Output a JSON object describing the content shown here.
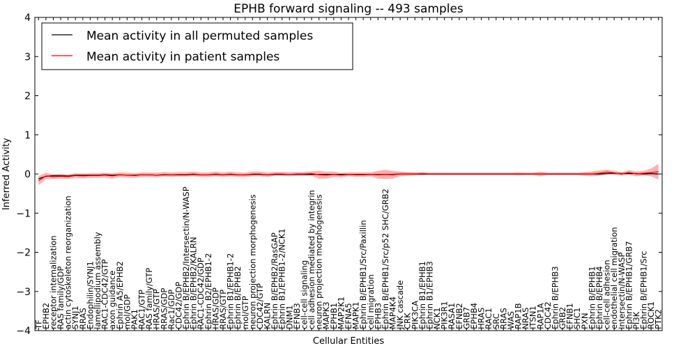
{
  "chart_data": {
    "type": "line",
    "title": "EPHB forward signaling -- 493 samples",
    "xlabel": "Cellular Entities",
    "ylabel": "Inferred Activity",
    "ylim": [
      -4,
      4
    ],
    "yticks": [
      -4,
      -3,
      -2,
      -1,
      0,
      1,
      2,
      3,
      4
    ],
    "grid": false,
    "legend_position": "top-left",
    "categories": [
      "TF",
      "EPHB2",
      "receptor internalization",
      "RAS family/GDP",
      "actin cytoskeleton reorganization",
      "SYNJ1",
      "RRAS",
      "Endophilin/SYNJ1",
      "lamellipodium assembly",
      "RAC1-CDC42/GTP",
      "axon guidance",
      "Ephrin A5/EPHB2",
      "mol/GDP",
      "PAK1",
      "RAC1/GTP",
      "RAS family/GTP",
      "HRAS/GTP",
      "RRAS/GDP",
      "Rac1/GDP",
      "CDC42/GDP",
      "Ephrin B/EPHB2/Intersectin/N-WASP",
      "Ephrin B/EPHB2/KALRN",
      "RAC1-CDC42/GDP",
      "Ephrin B2/EPHB1-2",
      "HRAS/GDP",
      "RRAS/GTP",
      "Ephrin B1/EPHB1-2",
      "Ephrin B/EPHB2",
      "mol/GTP",
      "neuron projection morphogenesis",
      "CDC42/GTP",
      "KALRN",
      "Ephrin B/EPHB2/RasGAP",
      "Ephrin B1/EPHB1-2/NCK1",
      "DNM1",
      "EFNB3",
      "cell-cell signaling",
      "cell adhesion mediated by integrin",
      "neuron projection morphogenesis",
      "MAPK3",
      "EPHB1",
      "MAP2K1",
      "EFNA5",
      "MAPK1",
      "Ephrin B/EPHB1/Src/Paxillin",
      "cell migration",
      "EPHB3",
      "Ephrin B/EPHB1/Src/p52 SHC/GRB2",
      "MAP4K4",
      "JNK cascade",
      "CRK",
      "PIK3CA",
      "Ephrin B1/EPHB1",
      "Ephrin B1/EPHB3",
      "NCK1",
      "PIK3R1",
      "RASA1",
      "EFNB2",
      "GRB7",
      "EPHB4",
      "HRAS",
      "RAC1",
      "SRC",
      "RRAS",
      "WAS",
      "RAP1B",
      "NRAS",
      "ITSN1",
      "RAP1A",
      "CDC42",
      "Ephrin B/EPHB3",
      "GRB2",
      "EFNB1",
      "SHC1",
      "PXN",
      "Ephrin B/EPHB1",
      "Ephrin B/EPHB4",
      "cell-cell adhesion",
      "endothelial cell migration",
      "Intersectin/N-WASP",
      "Ephrin B/EPHB1/GRB7",
      "PI3K",
      "Ephrin B/EPHB1/Src",
      "ROCK1",
      "PTK2"
    ],
    "series": [
      {
        "name": "Mean activity in all permuted samples",
        "color": "#000000",
        "values": [
          -0.12,
          -0.06,
          -0.04,
          -0.04,
          -0.05,
          -0.03,
          -0.03,
          -0.03,
          -0.03,
          -0.02,
          -0.03,
          -0.02,
          -0.03,
          -0.03,
          -0.02,
          -0.02,
          -0.03,
          -0.02,
          -0.02,
          -0.02,
          -0.02,
          -0.01,
          -0.02,
          -0.02,
          -0.01,
          -0.02,
          -0.01,
          -0.02,
          -0.02,
          -0.01,
          -0.01,
          -0.02,
          -0.01,
          -0.01,
          -0.01,
          -0.01,
          -0.01,
          -0.01,
          -0.01,
          -0.01,
          -0.01,
          -0.01,
          -0.01,
          -0.01,
          -0.01,
          -0.01,
          -0.01,
          -0.01,
          -0.01,
          0.0,
          0.0,
          0.0,
          0.0,
          0.0,
          0.0,
          0.0,
          0.0,
          0.0,
          0.0,
          0.0,
          0.0,
          0.0,
          0.0,
          0.0,
          0.0,
          0.0,
          0.0,
          0.0,
          0.0,
          0.0,
          0.0,
          0.0,
          0.0,
          0.0,
          0.0,
          0.0,
          0.0,
          0.01,
          0.02,
          0.01,
          0.01,
          0.01,
          0.0,
          0.01,
          0.0
        ],
        "band": [
          0.02,
          0.02,
          0.02,
          0.02,
          0.02,
          0.02,
          0.02,
          0.02,
          0.02,
          0.02,
          0.02,
          0.02,
          0.02,
          0.02,
          0.02,
          0.02,
          0.02,
          0.02,
          0.02,
          0.02,
          0.02,
          0.02,
          0.02,
          0.02,
          0.02,
          0.02,
          0.02,
          0.02,
          0.02,
          0.02,
          0.02,
          0.02,
          0.02,
          0.02,
          0.02,
          0.02,
          0.02,
          0.02,
          0.03,
          0.03,
          0.03,
          0.03,
          0.03,
          0.03,
          0.03,
          0.03,
          0.04,
          0.05,
          0.05,
          0.05,
          0.04,
          0.03,
          0.03,
          0.03,
          0.03,
          0.03,
          0.03,
          0.03,
          0.03,
          0.03,
          0.03,
          0.03,
          0.03,
          0.03,
          0.03,
          0.03,
          0.03,
          0.03,
          0.03,
          0.03,
          0.03,
          0.03,
          0.03,
          0.03,
          0.03,
          0.03,
          0.03,
          0.03,
          0.03,
          0.03,
          0.03,
          0.03,
          0.03,
          0.04,
          0.04
        ]
      },
      {
        "name": "Mean activity in patient samples",
        "color": "#ff0000",
        "values": [
          -0.17,
          -0.05,
          -0.07,
          -0.06,
          -0.07,
          -0.04,
          -0.05,
          -0.04,
          -0.04,
          -0.03,
          -0.05,
          -0.02,
          -0.03,
          -0.04,
          -0.02,
          -0.02,
          -0.03,
          -0.01,
          -0.02,
          -0.01,
          -0.01,
          0.0,
          -0.02,
          -0.02,
          0.0,
          -0.02,
          0.0,
          -0.02,
          -0.02,
          0.0,
          0.0,
          -0.02,
          0.0,
          0.0,
          -0.01,
          0.0,
          0.0,
          0.01,
          -0.02,
          -0.03,
          -0.01,
          -0.03,
          -0.01,
          -0.02,
          -0.02,
          -0.01,
          -0.02,
          -0.01,
          -0.02,
          0.0,
          0.0,
          0.0,
          0.01,
          0.0,
          0.0,
          0.0,
          0.0,
          0.0,
          0.0,
          0.0,
          0.0,
          0.0,
          0.0,
          0.0,
          0.0,
          0.0,
          0.0,
          0.0,
          0.0,
          0.0,
          0.0,
          0.0,
          0.0,
          0.0,
          0.0,
          0.0,
          0.02,
          0.05,
          0.03,
          0.0,
          0.04,
          0.0,
          0.02,
          0.04,
          0.06
        ],
        "band": [
          0.12,
          0.08,
          0.06,
          0.06,
          0.06,
          0.06,
          0.06,
          0.06,
          0.06,
          0.06,
          0.07,
          0.06,
          0.06,
          0.06,
          0.06,
          0.06,
          0.06,
          0.06,
          0.06,
          0.06,
          0.06,
          0.06,
          0.06,
          0.06,
          0.06,
          0.06,
          0.06,
          0.06,
          0.06,
          0.06,
          0.06,
          0.06,
          0.05,
          0.05,
          0.05,
          0.05,
          0.05,
          0.06,
          0.1,
          0.09,
          0.07,
          0.06,
          0.05,
          0.06,
          0.06,
          0.05,
          0.1,
          0.12,
          0.1,
          0.06,
          0.05,
          0.04,
          0.04,
          0.03,
          0.03,
          0.03,
          0.03,
          0.03,
          0.03,
          0.03,
          0.03,
          0.03,
          0.03,
          0.03,
          0.03,
          0.04,
          0.03,
          0.03,
          0.06,
          0.03,
          0.03,
          0.03,
          0.03,
          0.03,
          0.05,
          0.06,
          0.07,
          0.06,
          0.05,
          0.04,
          0.06,
          0.06,
          0.06,
          0.1,
          0.2
        ]
      }
    ]
  },
  "legend": {
    "items": [
      {
        "label": "Mean activity in all permuted samples",
        "color": "#000000"
      },
      {
        "label": "Mean activity in patient samples",
        "color": "#ff0000"
      }
    ]
  }
}
